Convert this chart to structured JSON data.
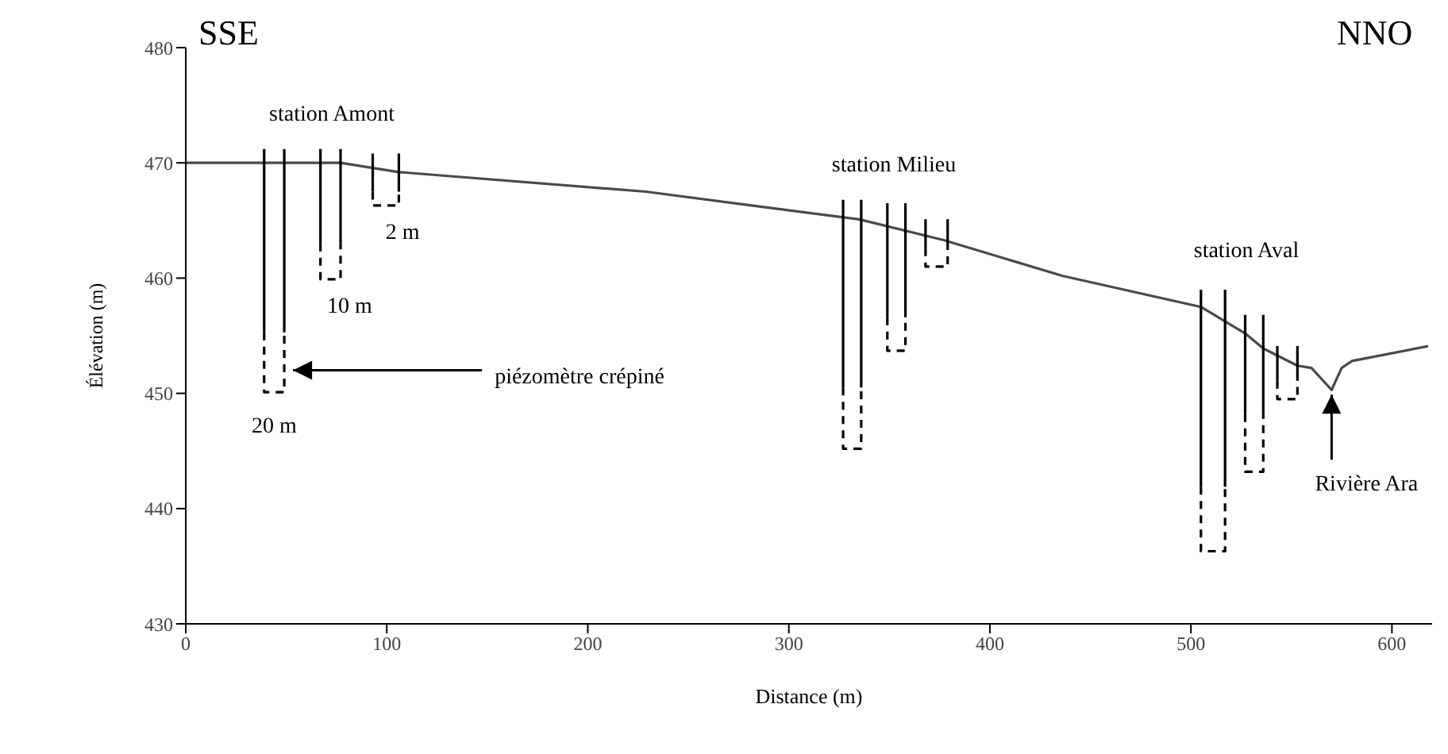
{
  "chart_data": {
    "type": "line",
    "xlabel": "Distance (m)",
    "ylabel": "Élévation (m)",
    "xlim": [
      0,
      620
    ],
    "xticks": [
      0,
      100,
      200,
      300,
      400,
      500,
      600
    ],
    "ylim": [
      430,
      480
    ],
    "yticks": [
      430,
      440,
      450,
      460,
      470,
      480
    ],
    "marker": "none",
    "series": [
      {
        "color": "#4a4a4a",
        "line_style": "solid",
        "x": [
          0,
          77,
          106,
          229,
          286,
          335,
          377,
          436,
          505,
          527,
          536,
          553,
          560,
          570,
          575,
          580,
          618
        ],
        "values": [
          470,
          470,
          469.2,
          467.5,
          466.2,
          465.1,
          463.3,
          460.2,
          457.5,
          455.2,
          453.9,
          452.4,
          452.2,
          450.3,
          452.2,
          452.8,
          454.1
        ]
      },
      {
        "color": "#000000",
        "line_style": "solid",
        "x": [
          39,
          39,
          null,
          49,
          49,
          null,
          67,
          67,
          null,
          77,
          77,
          null,
          93,
          93,
          null,
          106,
          106,
          null,
          327,
          327,
          null,
          336,
          336,
          null,
          349,
          349,
          null,
          358,
          358,
          null,
          368,
          368,
          null,
          379,
          379,
          null,
          505,
          505,
          null,
          517,
          517,
          null,
          527,
          527,
          null,
          536,
          536,
          null,
          543,
          543,
          null,
          553,
          553,
          null
        ],
        "values": [
          471.2,
          455.3,
          null,
          471.2,
          455.3,
          null,
          471.2,
          463,
          null,
          471.2,
          463,
          null,
          470.8,
          467.5,
          null,
          470.8,
          467.5,
          null,
          466.8,
          450.5,
          null,
          466.8,
          450.5,
          null,
          466.5,
          456.6,
          null,
          466.5,
          456.6,
          null,
          465.1,
          462.6,
          null,
          465.1,
          462.6,
          null,
          459,
          441.9,
          null,
          459,
          441.9,
          null,
          456.8,
          448.2,
          null,
          456.8,
          448.2,
          null,
          454.1,
          451.1,
          null,
          454.1,
          451.1,
          null
        ]
      },
      {
        "color": "#000000",
        "line_style": "dashed",
        "x": [
          39,
          39,
          49,
          49,
          null,
          67,
          67,
          77,
          77,
          null,
          93,
          93,
          106,
          106,
          null,
          327,
          327,
          336,
          336,
          null,
          349,
          349,
          358,
          358,
          null,
          368,
          368,
          379,
          379,
          null,
          505,
          505,
          517,
          517,
          null,
          527,
          527,
          536,
          536,
          null,
          543,
          543,
          553,
          553,
          null
        ],
        "values": [
          455.3,
          450.1,
          450.1,
          455.3,
          null,
          463,
          459.9,
          459.9,
          463,
          null,
          467.5,
          466.3,
          466.3,
          467.5,
          null,
          450.5,
          445.2,
          445.2,
          450.5,
          null,
          456.6,
          453.7,
          453.7,
          456.6,
          null,
          462.6,
          461,
          461,
          462.6,
          null,
          441.9,
          436.3,
          436.3,
          441.9,
          null,
          448.2,
          443.2,
          443.2,
          448.2,
          null,
          451.1,
          449.5,
          449.5,
          451.1,
          null
        ]
      }
    ],
    "annotations": [
      "SSE",
      "NNO",
      "station Amont",
      {
        "text": "2 m",
        "x": 100,
        "y": 466.3
      },
      {
        "text": "10 m",
        "x": 72,
        "y": 459.9
      },
      {
        "text": "20 m",
        "x": 44,
        "y": 450.1
      },
      {
        "text": "piézomètre crépiné",
        "x": 51,
        "y": 452
      },
      "station Milieu",
      "station Aval",
      {
        "text": "Rivière Ara",
        "x": 570,
        "y": 450.3
      }
    ]
  }
}
